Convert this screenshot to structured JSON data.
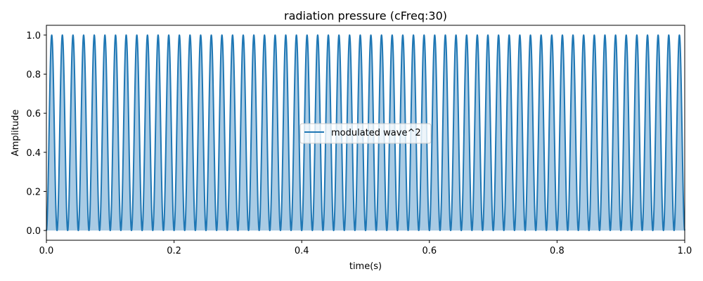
{
  "chart_data": {
    "type": "line",
    "title": "radiation pressure (cFreq:30)",
    "xlabel": "time(s)",
    "ylabel": "Amplitude",
    "xlim": [
      0,
      1
    ],
    "ylim": [
      -0.05,
      1.05
    ],
    "xticks": [
      0,
      0.2,
      0.4,
      0.6,
      0.8,
      1.0
    ],
    "xtick_labels": [
      "0.0",
      "0.2",
      "0.4",
      "0.6",
      "0.8",
      "1.0"
    ],
    "yticks": [
      0,
      0.2,
      0.4,
      0.6,
      0.8,
      1.0
    ],
    "ytick_labels": [
      "0.0",
      "0.2",
      "0.4",
      "0.6",
      "0.8",
      "1.0"
    ],
    "grid": false,
    "legend_position": "center",
    "series": [
      {
        "name": "modulated wave^2",
        "function": "sin^2(2*pi*30*t)",
        "frequency_hz": 30,
        "y_min": 0,
        "y_max": 1,
        "filled_to": 0,
        "color": "#1f77b4",
        "fill_color": "#a9cbe4"
      }
    ]
  }
}
